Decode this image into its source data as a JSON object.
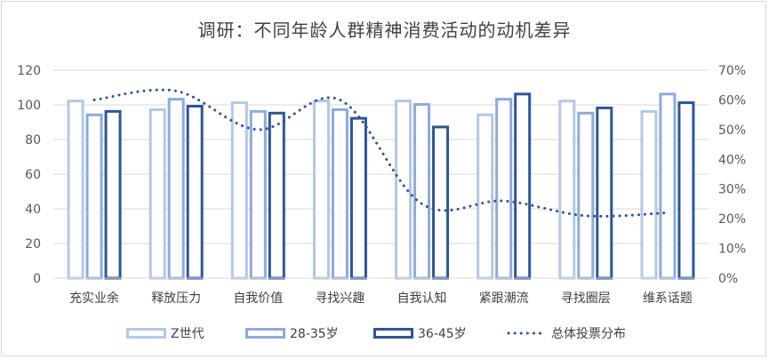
{
  "chart_data": {
    "type": "bar",
    "title": "调研：不同年龄人群精神消费活动的动机差异",
    "categories": [
      "充实业余",
      "释放压力",
      "自我价值",
      "寻找兴趣",
      "自我认知",
      "紧跟潮流",
      "寻找圈层",
      "维系话题"
    ],
    "series": [
      {
        "name": "Z世代",
        "values": [
          103,
          98,
          102,
          103,
          103,
          95,
          103,
          97
        ],
        "color": "#b4c7e7",
        "axis": "left"
      },
      {
        "name": "28-35岁",
        "values": [
          95,
          104,
          97,
          98,
          101,
          104,
          96,
          107
        ],
        "color": "#8faadc",
        "axis": "left"
      },
      {
        "name": "36-45岁",
        "values": [
          97,
          100,
          96,
          93,
          88,
          107,
          99,
          102
        ],
        "color": "#2f5597",
        "axis": "left"
      }
    ],
    "line_series": {
      "name": "总体投票分布",
      "values": [
        0.6,
        0.63,
        0.5,
        0.6,
        0.25,
        0.26,
        0.21,
        0.22
      ],
      "color": "#2f5597",
      "style": "dotted",
      "axis": "right"
    },
    "left_axis": {
      "min": 0,
      "max": 120,
      "ticks": [
        "0",
        "20",
        "40",
        "60",
        "80",
        "100",
        "120"
      ]
    },
    "right_axis": {
      "min": 0,
      "max": 0.7,
      "ticks": [
        "0%",
        "10%",
        "20%",
        "30%",
        "40%",
        "50%",
        "60%",
        "70%"
      ]
    },
    "grid": true,
    "legend_position": "bottom"
  }
}
